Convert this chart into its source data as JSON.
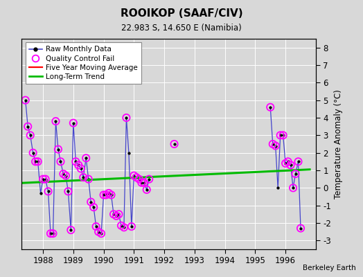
{
  "title": "ROOIKOP (SAAF/CIV)",
  "subtitle": "22.983 S, 14.650 E (Namibia)",
  "ylabel": "Temperature Anomaly (°C)",
  "watermark": "Berkeley Earth",
  "ylim": [
    -3.5,
    8.5
  ],
  "xlim": [
    1987.3,
    1997.0
  ],
  "yticks": [
    -3,
    -2,
    -1,
    0,
    1,
    2,
    3,
    4,
    5,
    6,
    7,
    8
  ],
  "xticks": [
    1988,
    1989,
    1990,
    1991,
    1992,
    1993,
    1994,
    1995,
    1996
  ],
  "bg_color": "#d8d8d8",
  "plot_bg": "#d8d8d8",
  "raw_x": [
    1987.42,
    1987.5,
    1987.58,
    1987.67,
    1987.75,
    1987.83,
    1987.92,
    1988.0,
    1988.08,
    1988.17,
    1988.25,
    1988.33,
    1988.42,
    1988.5,
    1988.58,
    1988.67,
    1988.75,
    1988.83,
    1988.92,
    1989.0,
    1989.08,
    1989.17,
    1989.25,
    1989.33,
    1989.42,
    1989.5,
    1989.58,
    1989.67,
    1989.75,
    1989.83,
    1989.92,
    1990.0,
    1990.08,
    1990.17,
    1990.25,
    1990.33,
    1990.42,
    1990.5,
    1990.58,
    1990.67,
    1990.75,
    1990.83,
    1990.92,
    1991.0,
    1991.08,
    1991.17,
    1991.25,
    1991.33,
    1991.42,
    1991.5,
    null,
    1992.33,
    null,
    1995.5,
    1995.58,
    1995.67,
    1995.75,
    1995.83,
    1995.92,
    1996.0,
    1996.08,
    1996.17,
    1996.25,
    1996.33,
    1996.42,
    1996.5
  ],
  "raw_y": [
    5.0,
    3.5,
    3.0,
    2.0,
    1.5,
    1.5,
    -0.3,
    0.5,
    0.5,
    -0.2,
    -2.6,
    -2.6,
    3.8,
    2.2,
    1.5,
    0.8,
    0.7,
    -0.2,
    -2.4,
    3.7,
    1.5,
    1.3,
    1.1,
    0.6,
    1.7,
    0.5,
    -0.8,
    -1.1,
    -2.2,
    -2.5,
    -2.6,
    -0.4,
    -0.4,
    -0.3,
    -0.4,
    -1.5,
    -1.6,
    -1.5,
    -2.15,
    -2.25,
    4.0,
    2.0,
    -2.2,
    0.7,
    0.6,
    0.5,
    0.3,
    0.3,
    -0.1,
    0.5,
    null,
    2.5,
    null,
    4.6,
    2.5,
    2.4,
    0.0,
    3.0,
    3.0,
    1.4,
    1.5,
    1.3,
    0.0,
    0.8,
    1.5,
    -2.3
  ],
  "qc_fail_x": [
    1987.42,
    1987.5,
    1987.58,
    1987.67,
    1987.75,
    1987.83,
    1988.0,
    1988.08,
    1988.17,
    1988.25,
    1988.33,
    1988.42,
    1988.5,
    1988.58,
    1988.67,
    1988.75,
    1988.83,
    1988.92,
    1989.0,
    1989.08,
    1989.17,
    1989.25,
    1989.33,
    1989.42,
    1989.5,
    1989.58,
    1989.67,
    1989.75,
    1989.83,
    1989.92,
    1990.0,
    1990.08,
    1990.17,
    1990.25,
    1990.33,
    1990.42,
    1990.5,
    1990.58,
    1990.67,
    1990.75,
    1990.92,
    1991.0,
    1991.08,
    1991.17,
    1991.25,
    1991.33,
    1991.42,
    1991.5,
    1992.33,
    1995.5,
    1995.58,
    1995.67,
    1995.83,
    1995.92,
    1996.0,
    1996.08,
    1996.17,
    1996.25,
    1996.33,
    1996.42,
    1996.5
  ],
  "qc_fail_y": [
    5.0,
    3.5,
    3.0,
    2.0,
    1.5,
    1.5,
    0.5,
    0.5,
    -0.2,
    -2.6,
    -2.6,
    3.8,
    2.2,
    1.5,
    0.8,
    0.7,
    -0.2,
    -2.4,
    3.7,
    1.5,
    1.3,
    1.1,
    0.6,
    1.7,
    0.5,
    -0.8,
    -1.1,
    -2.2,
    -2.5,
    -2.6,
    -0.4,
    -0.4,
    -0.3,
    -0.4,
    -1.5,
    -1.6,
    -1.5,
    -2.15,
    -2.25,
    4.0,
    -2.2,
    0.7,
    0.6,
    0.5,
    0.3,
    0.3,
    -0.1,
    0.5,
    2.5,
    4.6,
    2.5,
    2.4,
    3.0,
    3.0,
    1.4,
    1.5,
    1.3,
    0.0,
    0.8,
    1.5,
    -2.3
  ],
  "trend_x": [
    1987.3,
    1996.8
  ],
  "trend_y": [
    0.28,
    1.05
  ],
  "raw_color": "#4444cc",
  "raw_marker_color": "#000000",
  "qc_color": "#ff00ff",
  "trend_color": "#00bb00",
  "ma_color": "#ff0000"
}
